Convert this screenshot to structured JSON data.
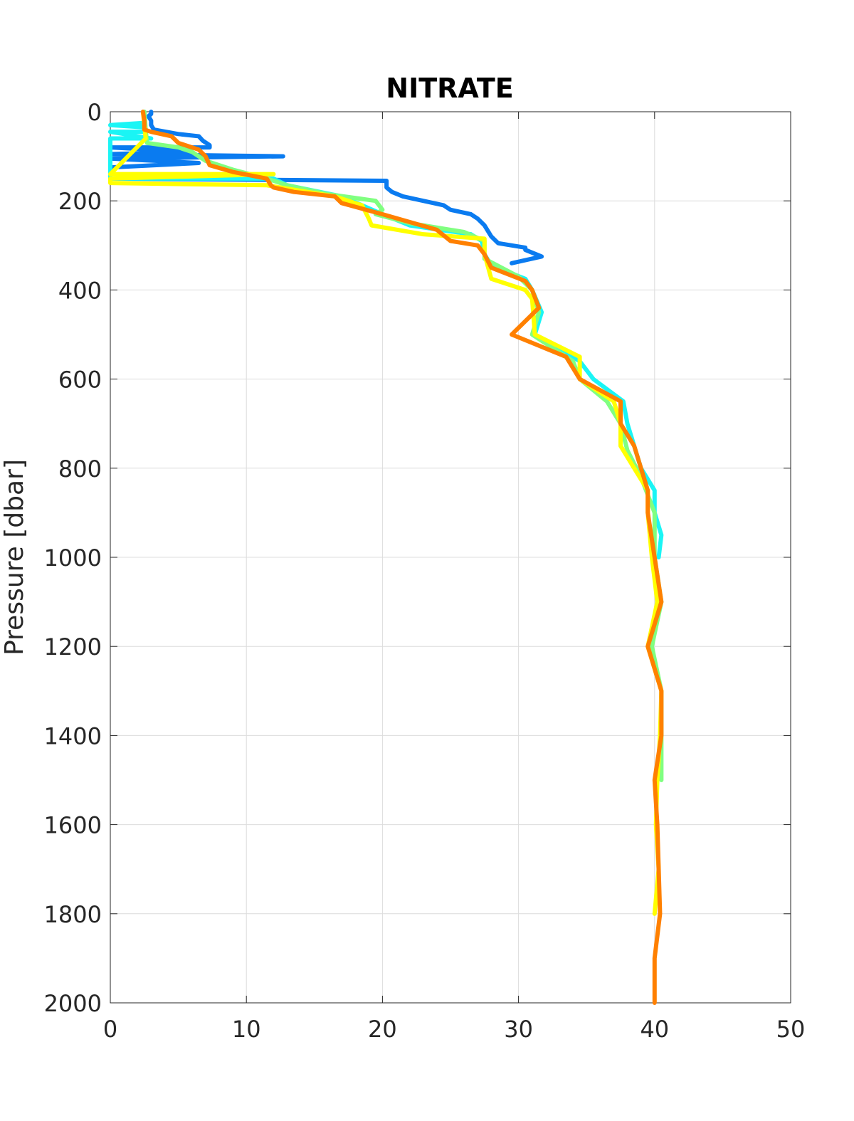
{
  "chart_data": {
    "type": "line",
    "title": "NITRATE",
    "y_label": "Pressure [dbar]",
    "xlim": [
      0,
      50
    ],
    "xticks": [
      0,
      10,
      20,
      30,
      40,
      50
    ],
    "ylim": [
      0,
      2000
    ],
    "yticks": [
      0,
      200,
      400,
      600,
      800,
      1000,
      1200,
      1400,
      1600,
      1800,
      2000
    ],
    "y_reversed": true,
    "grid": true,
    "series": [
      {
        "color": "#0a7bf0",
        "x": [
          3,
          3,
          2.8,
          3,
          3,
          3.2,
          5,
          6.5,
          6.8,
          7.3,
          7.3,
          0,
          6,
          0,
          12.7,
          0,
          6.5,
          0,
          0,
          20.3,
          20.3,
          20.7,
          21.5,
          23,
          24.5,
          25,
          26.5,
          27,
          27.5,
          28,
          28.5,
          30.5,
          30.5,
          31.7,
          29.5
        ],
        "values": [
          0,
          5,
          10,
          20,
          30,
          40,
          50,
          55,
          65,
          75,
          80,
          80,
          90,
          95,
          100,
          105,
          115,
          125,
          150,
          155,
          170,
          180,
          190,
          200,
          210,
          220,
          230,
          240,
          255,
          280,
          295,
          305,
          310,
          325,
          340
        ]
      },
      {
        "color": "#1af5f5",
        "x": [
          2.5,
          2.5,
          0,
          2.5,
          2.6,
          0,
          3,
          0,
          0,
          12,
          13,
          17,
          20,
          22,
          26.5,
          27.3,
          27.5,
          28,
          30.5,
          31,
          31.7,
          31.2,
          34.5,
          35.5,
          37.7,
          38,
          38.5,
          39,
          40,
          40,
          40.5,
          40.3
        ],
        "values": [
          0,
          25,
          30,
          35,
          45,
          45,
          60,
          60,
          150,
          150,
          165,
          190,
          230,
          255,
          275,
          290,
          320,
          345,
          375,
          400,
          450,
          500,
          560,
          600,
          650,
          700,
          750,
          800,
          850,
          900,
          950,
          1000
        ]
      },
      {
        "color": "#80ff80",
        "x": [
          2.5,
          2.6,
          2.7,
          5,
          6,
          7,
          9,
          11.5,
          13,
          16,
          19.5,
          20,
          19.5,
          22,
          26,
          27.5,
          27.5,
          30,
          31,
          31.5,
          31,
          34,
          34.5,
          36.5,
          37.5,
          38,
          39,
          40,
          40,
          40.5,
          39.8,
          40.5,
          40.5,
          40.5
        ],
        "values": [
          0,
          40,
          70,
          80,
          90,
          110,
          130,
          150,
          165,
          185,
          200,
          220,
          230,
          250,
          270,
          290,
          330,
          370,
          400,
          450,
          500,
          560,
          600,
          650,
          700,
          760,
          820,
          900,
          1000,
          1100,
          1200,
          1300,
          1400,
          1500
        ]
      },
      {
        "color": "#ffff00",
        "x": [
          2.4,
          2.6,
          0,
          12,
          0,
          0,
          11.5,
          13.5,
          16.5,
          18.5,
          19,
          19.2,
          23,
          27.5,
          27.5,
          28,
          30.5,
          31,
          31.2,
          34.5,
          34.5,
          37,
          37.5,
          37.5,
          38.5,
          39.5,
          39.5,
          39.8,
          40.2,
          39.5,
          40.5,
          40.4,
          40.2,
          40.1,
          40.3,
          40
        ],
        "values": [
          0,
          60,
          140,
          140,
          150,
          160,
          165,
          175,
          190,
          210,
          240,
          255,
          275,
          285,
          320,
          375,
          400,
          420,
          500,
          550,
          600,
          650,
          700,
          750,
          800,
          850,
          900,
          1000,
          1100,
          1200,
          1300,
          1400,
          1500,
          1600,
          1700,
          1800
        ]
      },
      {
        "color": "#ff8000",
        "x": [
          2.4,
          2.5,
          2.5,
          3,
          4.5,
          5,
          6.5,
          7,
          7.3,
          9,
          11.5,
          11.8,
          12,
          13.5,
          16.5,
          17,
          20,
          24,
          25,
          27,
          27.5,
          28,
          30.5,
          31,
          31.5,
          29.5,
          33.5,
          34.5,
          37.5,
          37.5,
          38.5,
          39,
          39.5,
          39.5,
          40,
          40.5,
          39.5,
          40.5,
          40.5,
          40,
          40.2,
          40.4,
          40,
          40
        ],
        "values": [
          0,
          20,
          40,
          45,
          55,
          70,
          85,
          100,
          120,
          135,
          150,
          165,
          170,
          180,
          190,
          205,
          230,
          265,
          290,
          300,
          320,
          350,
          380,
          400,
          440,
          500,
          550,
          600,
          650,
          700,
          750,
          800,
          850,
          900,
          1000,
          1100,
          1200,
          1300,
          1400,
          1500,
          1600,
          1800,
          1900,
          2000
        ]
      }
    ]
  }
}
